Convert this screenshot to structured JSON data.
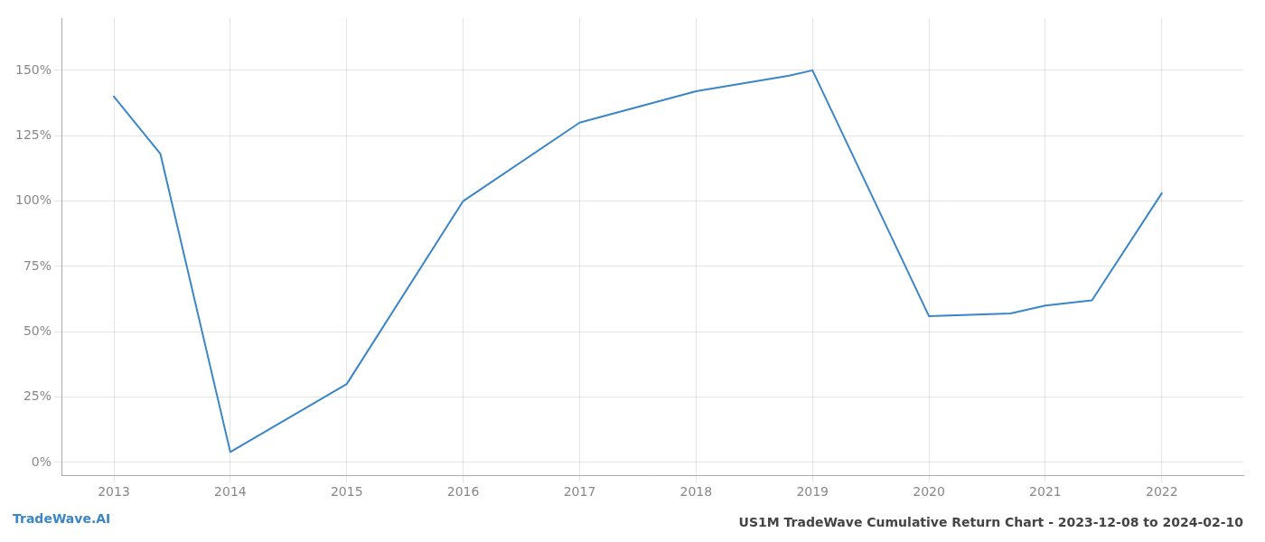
{
  "chart_data": {
    "type": "line",
    "title": "US1M TradeWave Cumulative Return Chart - 2023-12-08 to 2024-02-10",
    "annotations": [
      "TradeWave.AI"
    ],
    "x": [
      2013,
      2013.4,
      2014,
      2015,
      2016,
      2017,
      2018,
      2018.8,
      2019,
      2020,
      2020.7,
      2021,
      2021.4,
      2022
    ],
    "values": [
      1.4,
      1.18,
      0.04,
      0.3,
      1.0,
      1.3,
      1.42,
      1.48,
      1.5,
      0.56,
      0.57,
      0.6,
      0.62,
      1.03
    ],
    "color": "#3a86c8",
    "xlim": [
      2012.55,
      2022.7
    ],
    "ylim": [
      -0.05,
      1.7
    ],
    "xticks": [
      2013,
      2014,
      2015,
      2016,
      2017,
      2018,
      2019,
      2020,
      2021,
      2022
    ],
    "yticks": [
      {
        "value": 0.0,
        "label": "0%"
      },
      {
        "value": 0.25,
        "label": "25%"
      },
      {
        "value": 0.5,
        "label": "50%"
      },
      {
        "value": 0.75,
        "label": "75%"
      },
      {
        "value": 1.0,
        "label": "100%"
      },
      {
        "value": 1.25,
        "label": "125%"
      },
      {
        "value": 1.5,
        "label": "150%"
      }
    ],
    "grid": true
  }
}
